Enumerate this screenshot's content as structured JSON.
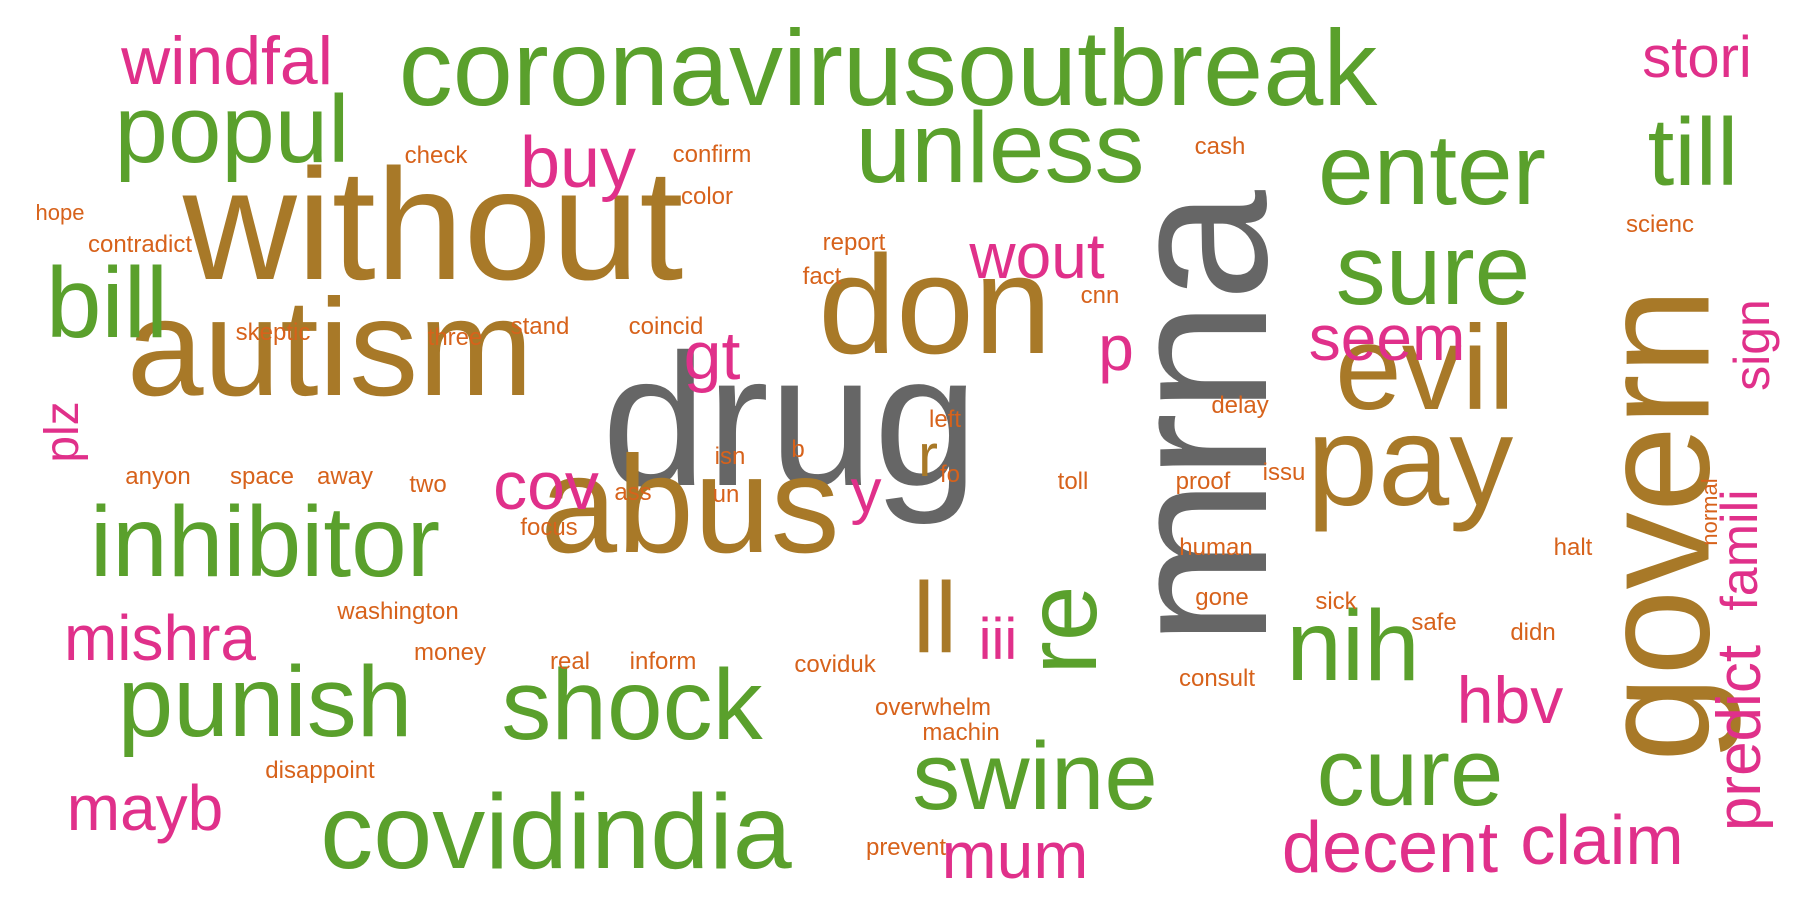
{
  "colors": {
    "green": "#5aa02c",
    "brown": "#a87928",
    "gray": "#666666",
    "pink": "#e0308a",
    "orange": "#d7621b"
  },
  "words": [
    {
      "text": "coronavirusoutbreak",
      "color": "green"
    },
    {
      "text": "without",
      "color": "brown"
    },
    {
      "text": "autism",
      "color": "brown"
    },
    {
      "text": "drug",
      "color": "gray"
    },
    {
      "text": "mrna",
      "color": "gray"
    },
    {
      "text": "abus",
      "color": "brown"
    },
    {
      "text": "don",
      "color": "brown"
    },
    {
      "text": "pay",
      "color": "brown"
    },
    {
      "text": "evil",
      "color": "brown"
    },
    {
      "text": "govern",
      "color": "brown"
    },
    {
      "text": "unless",
      "color": "green"
    },
    {
      "text": "enter",
      "color": "green"
    },
    {
      "text": "popul",
      "color": "green"
    },
    {
      "text": "inhibitor",
      "color": "green"
    },
    {
      "text": "punish",
      "color": "green"
    },
    {
      "text": "shock",
      "color": "green"
    },
    {
      "text": "covidindia",
      "color": "green"
    },
    {
      "text": "swine",
      "color": "green"
    },
    {
      "text": "cure",
      "color": "green"
    },
    {
      "text": "sure",
      "color": "green"
    },
    {
      "text": "nih",
      "color": "green"
    },
    {
      "text": "bill",
      "color": "green"
    },
    {
      "text": "till",
      "color": "green"
    },
    {
      "text": "re",
      "color": "green"
    },
    {
      "text": "ll",
      "color": "brown"
    },
    {
      "text": "windfal",
      "color": "pink"
    },
    {
      "text": "stori",
      "color": "pink"
    },
    {
      "text": "buy",
      "color": "pink"
    },
    {
      "text": "wout",
      "color": "pink"
    },
    {
      "text": "seem",
      "color": "pink"
    },
    {
      "text": "gt",
      "color": "pink"
    },
    {
      "text": "p",
      "color": "pink"
    },
    {
      "text": "cov",
      "color": "pink"
    },
    {
      "text": "r",
      "color": "brown"
    },
    {
      "text": "y",
      "color": "pink"
    },
    {
      "text": "mishra",
      "color": "pink"
    },
    {
      "text": "mayb",
      "color": "pink"
    },
    {
      "text": "mum",
      "color": "pink"
    },
    {
      "text": "decent",
      "color": "pink"
    },
    {
      "text": "claim",
      "color": "pink"
    },
    {
      "text": "hbv",
      "color": "pink"
    },
    {
      "text": "iii",
      "color": "pink"
    },
    {
      "text": "plz",
      "color": "pink"
    },
    {
      "text": "sign",
      "color": "pink"
    },
    {
      "text": "famili",
      "color": "pink"
    },
    {
      "text": "predict",
      "color": "pink"
    },
    {
      "text": "check",
      "color": "orange"
    },
    {
      "text": "confirm",
      "color": "orange"
    },
    {
      "text": "cash",
      "color": "orange"
    },
    {
      "text": "hope",
      "color": "orange"
    },
    {
      "text": "color",
      "color": "orange"
    },
    {
      "text": "contradict",
      "color": "orange"
    },
    {
      "text": "report",
      "color": "orange"
    },
    {
      "text": "scienc",
      "color": "orange"
    },
    {
      "text": "fact",
      "color": "orange"
    },
    {
      "text": "cnn",
      "color": "orange"
    },
    {
      "text": "skeptic",
      "color": "orange"
    },
    {
      "text": "three",
      "color": "orange"
    },
    {
      "text": "stand",
      "color": "orange"
    },
    {
      "text": "coincid",
      "color": "orange"
    },
    {
      "text": "left",
      "color": "orange"
    },
    {
      "text": "delay",
      "color": "orange"
    },
    {
      "text": "anyon",
      "color": "orange"
    },
    {
      "text": "space",
      "color": "orange"
    },
    {
      "text": "away",
      "color": "orange"
    },
    {
      "text": "two",
      "color": "orange"
    },
    {
      "text": "isn",
      "color": "orange"
    },
    {
      "text": "b",
      "color": "orange"
    },
    {
      "text": "fo",
      "color": "orange"
    },
    {
      "text": "toll",
      "color": "orange"
    },
    {
      "text": "proof",
      "color": "orange"
    },
    {
      "text": "issu",
      "color": "orange"
    },
    {
      "text": "ass",
      "color": "orange"
    },
    {
      "text": "un",
      "color": "orange"
    },
    {
      "text": "focus",
      "color": "orange"
    },
    {
      "text": "human",
      "color": "orange"
    },
    {
      "text": "halt",
      "color": "orange"
    },
    {
      "text": "washington",
      "color": "orange"
    },
    {
      "text": "gone",
      "color": "orange"
    },
    {
      "text": "sick",
      "color": "orange"
    },
    {
      "text": "safe",
      "color": "orange"
    },
    {
      "text": "didn",
      "color": "orange"
    },
    {
      "text": "money",
      "color": "orange"
    },
    {
      "text": "real",
      "color": "orange"
    },
    {
      "text": "inform",
      "color": "orange"
    },
    {
      "text": "coviduk",
      "color": "orange"
    },
    {
      "text": "consult",
      "color": "orange"
    },
    {
      "text": "overwhelm",
      "color": "orange"
    },
    {
      "text": "machin",
      "color": "orange"
    },
    {
      "text": "disappoint",
      "color": "orange"
    },
    {
      "text": "prevent",
      "color": "orange"
    },
    {
      "text": "normal",
      "color": "orange"
    }
  ]
}
